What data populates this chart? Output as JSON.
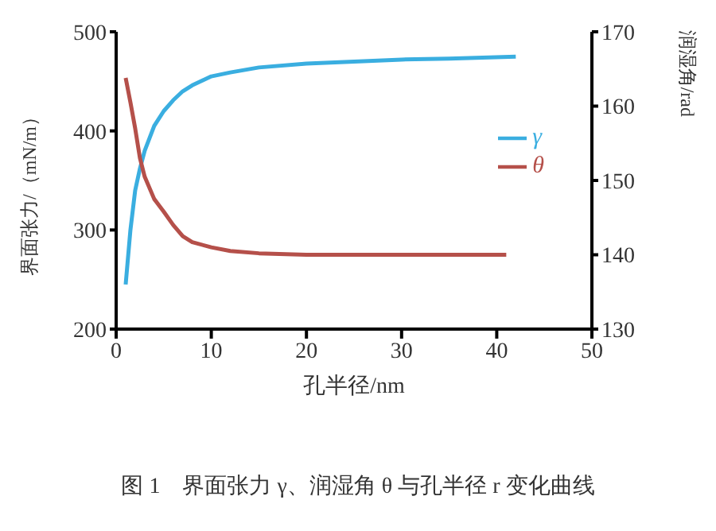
{
  "chart_data": {
    "type": "line",
    "xlabel": "孔半径/nm",
    "ylabel": "界面张力/（mN/m）",
    "y2label": "润湿角/rad",
    "annotations": [
      "图 1　界面张力 γ、润湿角 θ 与孔半径 r 变化曲线"
    ],
    "xlim": [
      0,
      50
    ],
    "xticks": [
      0,
      10,
      20,
      30,
      40,
      50
    ],
    "ylim": [
      200,
      500
    ],
    "yticks": [
      200,
      300,
      400,
      500
    ],
    "y2lim": [
      130,
      170
    ],
    "y2ticks": [
      130,
      140,
      150,
      160,
      170
    ],
    "legend": "top right",
    "grid": false,
    "marker": "none",
    "line_style": "solid",
    "series": [
      {
        "name": "γ",
        "color": "#3aaee0",
        "x": [
          1,
          1.5,
          2,
          2.5,
          3,
          4,
          5,
          6,
          7,
          8,
          10,
          12,
          15,
          20,
          25,
          30,
          35,
          42
        ],
        "values": [
          245,
          300,
          340,
          362,
          380,
          405,
          420,
          431,
          440,
          446,
          455,
          459,
          464,
          468,
          470,
          472,
          473,
          475
        ]
      },
      {
        "name": "θ",
        "color": "#b5504a",
        "axis": "y2",
        "x": [
          1,
          1.5,
          2,
          2.5,
          3,
          4,
          5,
          6,
          7,
          8,
          10,
          12,
          15,
          20,
          30,
          41
        ],
        "values": [
          163.8,
          160.5,
          157,
          153,
          150.5,
          147.5,
          145.8,
          144,
          142.5,
          141.7,
          141,
          140.5,
          140.2,
          140,
          140,
          140
        ]
      }
    ]
  }
}
